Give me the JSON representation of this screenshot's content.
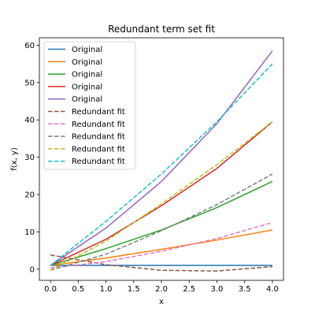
{
  "chart_data": {
    "type": "line",
    "title": "Redundant term set fit",
    "xlabel": "x",
    "ylabel": "f(x, y)",
    "xlim": [
      -0.2,
      4.2
    ],
    "ylim": [
      -3,
      62
    ],
    "x_ticks": [
      0.0,
      0.5,
      1.0,
      1.5,
      2.0,
      2.5,
      3.0,
      3.5,
      4.0
    ],
    "x_tick_labels": [
      "0.0",
      "0.5",
      "1.0",
      "1.5",
      "2.0",
      "2.5",
      "3.0",
      "3.5",
      "4.0"
    ],
    "y_ticks": [
      0,
      10,
      20,
      30,
      40,
      50,
      60
    ],
    "y_tick_labels": [
      "0",
      "10",
      "20",
      "30",
      "40",
      "50",
      "60"
    ],
    "grid": false,
    "legend_position": "top-left",
    "x": [
      0,
      1,
      2,
      3,
      4
    ],
    "series": [
      {
        "name": "Original",
        "color": "#1f77b4",
        "dash": "solid",
        "values": [
          1.0,
          1.0,
          1.0,
          1.0,
          1.0
        ]
      },
      {
        "name": "Original",
        "color": "#ff7f0e",
        "dash": "solid",
        "values": [
          1.0,
          3.0,
          5.3,
          7.8,
          10.5
        ]
      },
      {
        "name": "Original",
        "color": "#2ca02c",
        "dash": "solid",
        "values": [
          1.0,
          5.5,
          10.5,
          16.5,
          23.5
        ]
      },
      {
        "name": "Original",
        "color": "#d62728",
        "dash": "solid",
        "values": [
          1.0,
          8.0,
          17.0,
          27.0,
          39.5
        ]
      },
      {
        "name": "Original",
        "color": "#9467bd",
        "dash": "solid",
        "values": [
          1.0,
          11.0,
          23.5,
          39.0,
          58.5
        ]
      },
      {
        "name": "Redundant fit",
        "color": "#8c564b",
        "dash": "dashed",
        "values": [
          3.8,
          1.2,
          -0.3,
          -0.5,
          0.7
        ]
      },
      {
        "name": "Redundant fit",
        "color": "#e377c2",
        "dash": "dashed",
        "values": [
          0.3,
          2.0,
          4.8,
          8.2,
          12.5
        ]
      },
      {
        "name": "Redundant fit",
        "color": "#7f7f7f",
        "dash": "dashed",
        "values": [
          -0.3,
          4.0,
          10.3,
          17.3,
          25.5
        ]
      },
      {
        "name": "Redundant fit",
        "color": "#bcbd22",
        "dash": "dashed",
        "values": [
          -0.3,
          7.5,
          17.5,
          28.0,
          39.5
        ]
      },
      {
        "name": "Redundant fit",
        "color": "#17becf",
        "dash": "dashed",
        "values": [
          1.0,
          12.8,
          25.5,
          39.5,
          55.0
        ]
      }
    ]
  }
}
